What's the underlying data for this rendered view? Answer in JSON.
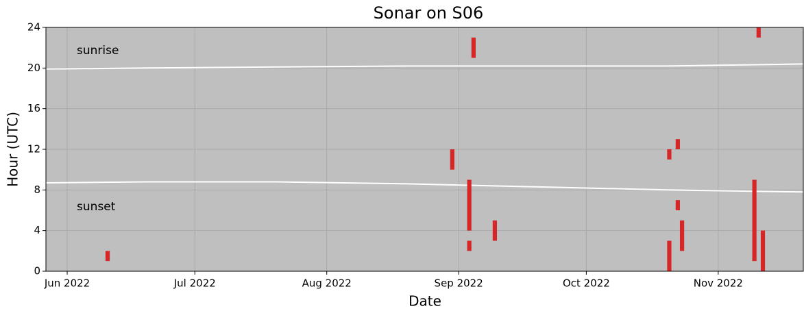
{
  "chart_data": {
    "type": "range",
    "title": "Sonar on S06",
    "x_label": "Date",
    "y_label": "Hour (UTC)",
    "xlim": [
      "2022-05-27",
      "2022-11-21"
    ],
    "xticks": [
      {
        "value": "2022-06-01",
        "label": "Jun 2022"
      },
      {
        "value": "2022-07-01",
        "label": "Jul 2022"
      },
      {
        "value": "2022-08-01",
        "label": "Aug 2022"
      },
      {
        "value": "2022-09-01",
        "label": "Sep 2022"
      },
      {
        "value": "2022-10-01",
        "label": "Oct 2022"
      },
      {
        "value": "2022-11-01",
        "label": "Nov 2022"
      }
    ],
    "ylim": [
      0,
      24
    ],
    "yticks": [
      0,
      4,
      8,
      12,
      16,
      20,
      24
    ],
    "grid": true,
    "background": "#bfbfbf",
    "event_color": "#d62728",
    "events": [
      {
        "x": "2022-06-10",
        "start": 1,
        "end": 2
      },
      {
        "x": "2022-08-30",
        "start": 10,
        "end": 12
      },
      {
        "x": "2022-09-03",
        "start": 4,
        "end": 9
      },
      {
        "x": "2022-09-03",
        "start": 2,
        "end": 3
      },
      {
        "x": "2022-09-04",
        "start": 21,
        "end": 23
      },
      {
        "x": "2022-09-09",
        "start": 3,
        "end": 5
      },
      {
        "x": "2022-10-20",
        "start": 11,
        "end": 12
      },
      {
        "x": "2022-10-20",
        "start": 0,
        "end": 3
      },
      {
        "x": "2022-10-22",
        "start": 12,
        "end": 13
      },
      {
        "x": "2022-10-22",
        "start": 6,
        "end": 7
      },
      {
        "x": "2022-10-23",
        "start": 2,
        "end": 5
      },
      {
        "x": "2022-11-09",
        "start": 1,
        "end": 9
      },
      {
        "x": "2022-11-10",
        "start": 23,
        "end": 24
      },
      {
        "x": "2022-11-11",
        "start": 0,
        "end": 4
      }
    ],
    "series": [
      {
        "name": "sunrise",
        "color": "#ffffff",
        "x": [
          "2022-05-27",
          "2022-06-20",
          "2022-07-20",
          "2022-08-20",
          "2022-09-20",
          "2022-10-20",
          "2022-11-21"
        ],
        "values": [
          19.9,
          20.0,
          20.1,
          20.2,
          20.2,
          20.2,
          20.4
        ]
      },
      {
        "name": "sunset",
        "color": "#ffffff",
        "x": [
          "2022-05-27",
          "2022-06-20",
          "2022-07-20",
          "2022-08-20",
          "2022-09-20",
          "2022-10-20",
          "2022-11-21"
        ],
        "values": [
          8.7,
          8.8,
          8.8,
          8.6,
          8.3,
          8.0,
          7.8
        ]
      }
    ]
  }
}
